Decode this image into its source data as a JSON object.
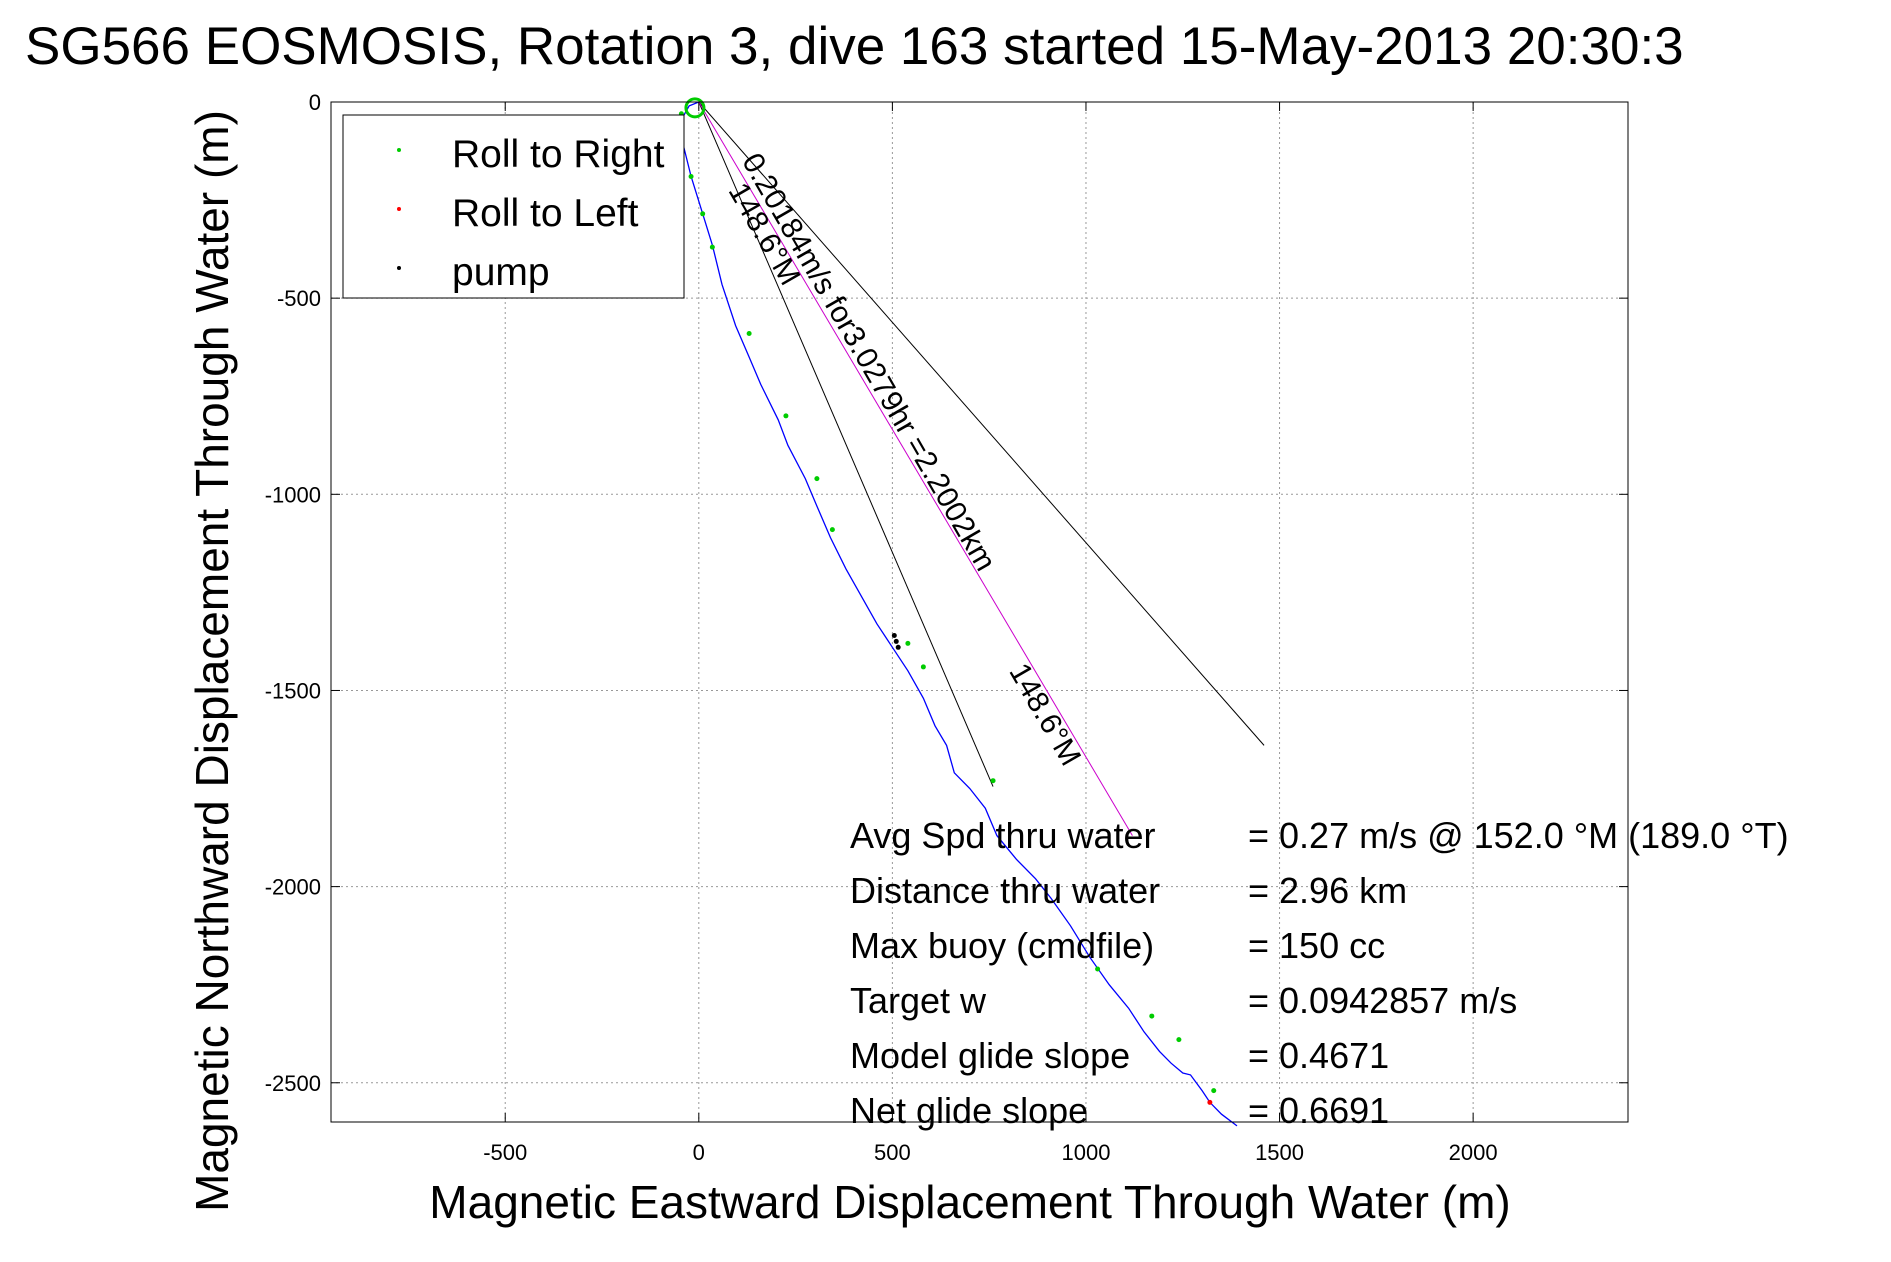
{
  "chart_data": {
    "type": "line",
    "title": "SG566 EOSMOSIS, Rotation 3, dive 163 started 15-May-2013 20:30:3",
    "xlabel": "Magnetic Eastward Displacement Through Water (m)",
    "ylabel": "Magnetic Northward Displacement Through Water (m)",
    "xlim": [
      -950,
      2400
    ],
    "ylim": [
      -2600,
      0
    ],
    "xticks": [
      -500,
      0,
      500,
      1000,
      1500,
      2000
    ],
    "yticks": [
      0,
      -500,
      -1000,
      -1500,
      -2000,
      -2500
    ],
    "xtick_labels": [
      "-500",
      "0",
      "500",
      "1000",
      "1500",
      "2000"
    ],
    "ytick_labels": [
      "0",
      "-500",
      "-1000",
      "-1500",
      "-2000",
      "-2500"
    ],
    "grid": true,
    "legend_position": "top-left",
    "legend": [
      {
        "label": "Roll to Right",
        "color": "#00cc00"
      },
      {
        "label": "Roll to Left",
        "color": "#ff0000"
      },
      {
        "label": "pump",
        "color": "#000000"
      }
    ],
    "track": {
      "color": "#0000ff",
      "x": [
        0,
        -25,
        -45,
        -40,
        -20,
        10,
        35,
        60,
        95,
        130,
        160,
        205,
        230,
        275,
        305,
        340,
        380,
        420,
        460,
        500,
        540,
        580,
        610,
        640,
        660,
        700,
        740,
        770,
        820,
        870,
        910,
        960,
        1010,
        1060,
        1110,
        1150,
        1190,
        1220,
        1250,
        1270,
        1300,
        1320,
        1350,
        1390
      ],
      "y": [
        0,
        -10,
        -45,
        -110,
        -190,
        -285,
        -365,
        -465,
        -570,
        -650,
        -720,
        -810,
        -875,
        -960,
        -1030,
        -1110,
        -1190,
        -1260,
        -1330,
        -1390,
        -1450,
        -1520,
        -1590,
        -1640,
        -1710,
        -1750,
        -1800,
        -1870,
        -1930,
        -1980,
        -2030,
        -2100,
        -2180,
        -2250,
        -2310,
        -2370,
        -2420,
        -2450,
        -2475,
        -2480,
        -2520,
        -2550,
        -2580,
        -2610
      ]
    },
    "markers": {
      "roll_right": {
        "color": "#00cc00",
        "x": [
          -45,
          -20,
          10,
          35,
          130,
          225,
          305,
          345,
          540,
          580,
          760,
          1030,
          1170,
          1240,
          1330
        ],
        "y": [
          -30,
          -190,
          -285,
          -370,
          -590,
          -800,
          -960,
          -1090,
          -1380,
          -1440,
          -1730,
          -2210,
          -2330,
          -2390,
          -2520
        ]
      },
      "roll_left": {
        "color": "#ff0000",
        "x": [
          1320
        ],
        "y": [
          -2550
        ]
      },
      "pump": {
        "color": "#000000",
        "x": [
          505,
          510,
          515
        ],
        "y": [
          -1360,
          -1375,
          -1390
        ]
      }
    },
    "lines": [
      {
        "name": "heading_line_a",
        "color": "#000000",
        "x": [
          0,
          760
        ],
        "y": [
          0,
          -1745
        ]
      },
      {
        "name": "heading_line_b",
        "color": "#000000",
        "x": [
          0,
          1460
        ],
        "y": [
          0,
          -1640
        ]
      },
      {
        "name": "current_line",
        "color": "#cc00cc",
        "x": [
          0,
          1120
        ],
        "y": [
          0,
          -1870
        ]
      }
    ],
    "annotations": [
      {
        "text": "0.20184m/s for3.0279hr =2.2002km",
        "x": 110,
        "y": -150,
        "angle": 60
      },
      {
        "text": "148.6°M",
        "x": 75,
        "y": -225,
        "angle": 60
      },
      {
        "text": "148.6°M",
        "x": 800,
        "y": -1450,
        "angle": 60
      }
    ],
    "stats": [
      {
        "label": "Avg Spd thru water",
        "value": "=  0.27 m/s @ 152.0 °M (189.0 °T)"
      },
      {
        "label": "Distance thru water",
        "value": "=  2.96 km"
      },
      {
        "label": "Max buoy (cmdfile)",
        "value": "= 150 cc"
      },
      {
        "label": "Target w",
        "value": "= 0.0942857 m/s"
      },
      {
        "label": "Model glide slope",
        "value": "= 0.4671"
      },
      {
        "label": "Net glide slope",
        "value": "= 0.6691"
      }
    ]
  }
}
